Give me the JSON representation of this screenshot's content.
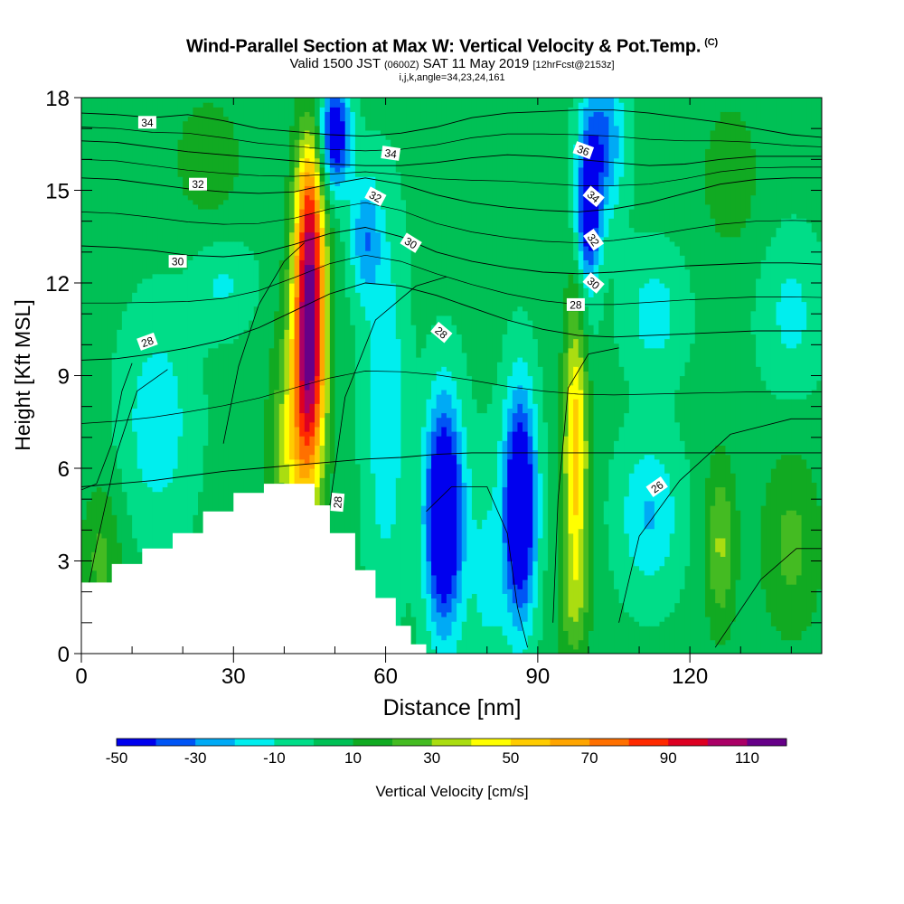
{
  "header": {
    "title": "Wind-Parallel Section at Max W: Vertical Velocity & Pot.Temp.",
    "title_mark": "(C)",
    "valid_a": "Valid 1500 JST",
    "valid_b": "(0600Z)",
    "valid_c": "SAT 11 May 2019",
    "valid_d": "[12hrFcst@2153z]",
    "params": "i,j,k,angle=34,23,24,161"
  },
  "chart_data": {
    "type": "heatmap",
    "xlabel": "Distance [nm]",
    "ylabel": "Height [Kft MSL]",
    "xlim": [
      0,
      146
    ],
    "ylim": [
      0,
      18
    ],
    "xticks": [
      "0",
      "30",
      "60",
      "90",
      "120"
    ],
    "yticks": [
      "0",
      "3",
      "6",
      "9",
      "12",
      "15",
      "18"
    ],
    "colorbar": {
      "label": "Vertical Velocity [cm/s]",
      "tick_labels": [
        "-50",
        "-30",
        "-10",
        "10",
        "30",
        "50",
        "70",
        "90",
        "110"
      ],
      "levels": [
        -50,
        -40,
        -30,
        -20,
        -10,
        0,
        10,
        20,
        30,
        40,
        50,
        60,
        70,
        80,
        90,
        100,
        110,
        120
      ],
      "colors": [
        "#0000ee",
        "#0055f5",
        "#00aaf5",
        "#00eeee",
        "#00dd88",
        "#00c055",
        "#11aa22",
        "#44bb22",
        "#aadd11",
        "#ffff00",
        "#ffcc00",
        "#ffa500",
        "#ff7000",
        "#ff2a00",
        "#dd0022",
        "#aa0066",
        "#660088"
      ]
    },
    "terrain_profile": {
      "distance": [
        0,
        6,
        12,
        18,
        24,
        30,
        36,
        42,
        46,
        49,
        54,
        58,
        62,
        65,
        68
      ],
      "height": [
        2.3,
        2.9,
        3.4,
        3.9,
        4.6,
        5.2,
        5.5,
        5.5,
        4.8,
        3.9,
        2.7,
        1.8,
        0.9,
        0.3,
        0
      ]
    },
    "vertical_velocity_cells": [
      {
        "x": 45,
        "z": 10.5,
        "max_cms": 115,
        "sign": "up"
      },
      {
        "x": 97.5,
        "z": 6.5,
        "max_cms": 45,
        "sign": "up"
      },
      {
        "x": 126,
        "z": 3.5,
        "max_cms": 30,
        "sign": "up"
      },
      {
        "x": 71.5,
        "z": 4.5,
        "min_cms": -50,
        "sign": "down"
      },
      {
        "x": 86.5,
        "z": 4.8,
        "min_cms": -48,
        "sign": "down"
      },
      {
        "x": 50,
        "z": 16.8,
        "min_cms": -40,
        "sign": "down"
      },
      {
        "x": 100,
        "z": 14,
        "min_cms": -35,
        "sign": "down"
      }
    ],
    "theta_contours": [
      {
        "label": "34",
        "z": [
          17.5,
          17.45,
          17.35,
          17.45,
          17.25,
          17.0,
          16.9,
          16.8,
          16.75,
          16.85,
          17.05,
          17.35,
          17.5,
          17.55,
          17.6,
          17.6,
          17.5,
          17.35,
          17.2,
          17.0,
          16.8,
          16.7,
          16.6
        ]
      },
      {
        "label": "34",
        "z": [
          16.6,
          16.55,
          16.4,
          16.25,
          16.15,
          16.05,
          15.95,
          15.85,
          15.8,
          15.8,
          15.9,
          16.05,
          16.15,
          16.1,
          16.0,
          15.9,
          15.8,
          15.85,
          16.0,
          16.1,
          16.1,
          16.1,
          16.05
        ]
      },
      {
        "label": "32",
        "z": [
          15.4,
          15.35,
          15.2,
          15.05,
          14.95,
          14.9,
          14.95,
          15.2,
          15.4,
          15.2,
          14.85,
          14.6,
          14.45,
          14.35,
          14.3,
          14.4,
          14.6,
          14.9,
          15.2,
          15.35,
          15.4,
          15.4,
          15.35
        ]
      },
      {
        "label": "30",
        "z": [
          13.2,
          13.15,
          13.05,
          12.9,
          12.85,
          12.95,
          13.25,
          13.6,
          13.8,
          13.5,
          13.0,
          12.7,
          12.5,
          12.35,
          12.3,
          12.35,
          12.45,
          12.55,
          12.6,
          12.65,
          12.65,
          12.6,
          12.55
        ]
      },
      {
        "label": "28",
        "z": [
          9.5,
          9.55,
          9.7,
          9.9,
          10.15,
          10.55,
          11.1,
          11.65,
          12.0,
          11.9,
          11.6,
          11.2,
          10.8,
          10.5,
          10.3,
          10.25,
          10.3,
          10.35,
          10.4,
          10.45,
          10.45,
          10.45,
          10.45
        ]
      },
      {
        "label": "26",
        "z": [
          5.4,
          5.5,
          5.6,
          5.75,
          5.9,
          6.0,
          6.1,
          6.2,
          6.3,
          6.35,
          6.45,
          6.5,
          6.5,
          6.5,
          6.5,
          6.5,
          6.5,
          6.5,
          6.5,
          6.5,
          6.5,
          6.5,
          6.5
        ]
      }
    ]
  }
}
